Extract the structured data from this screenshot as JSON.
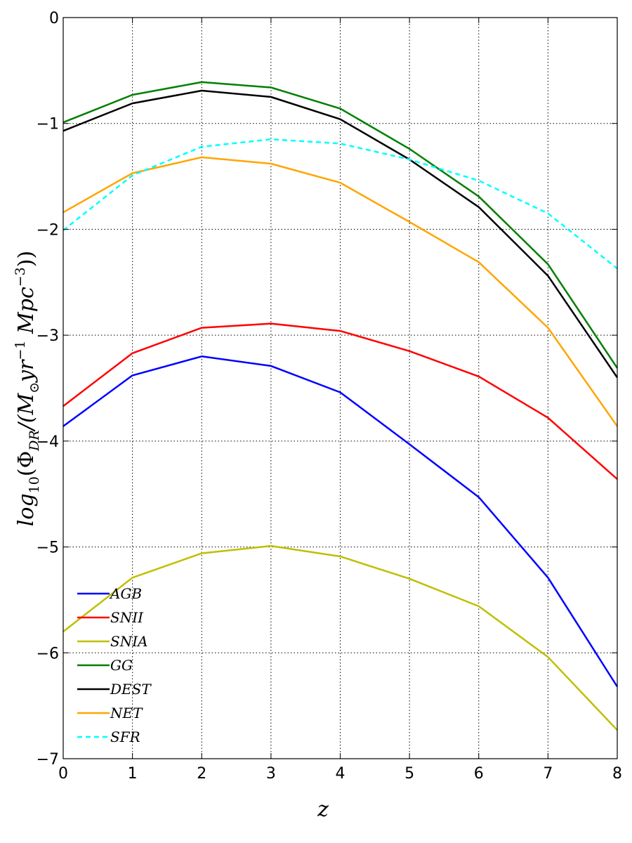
{
  "chart_data": {
    "type": "line",
    "xlabel": "z",
    "ylabel": "log10(ΦDR/(M⊙yr−1 Mpc−3))",
    "ylabel_parts": {
      "base": "log",
      "base_sub": "10",
      "open": "(Φ",
      "phi_sub": "DR",
      "mid": "/(M",
      "sun_sub": "⊙",
      "yr": "yr",
      "yr_sup": "−1",
      "mpc": " Mpc",
      "mpc_sup": "−3",
      "close": "))"
    },
    "xlim": [
      0,
      8
    ],
    "ylim": [
      -7,
      0
    ],
    "grid": true,
    "grid_style": "dotted",
    "legend_position": "lower-left",
    "x": [
      0,
      1,
      2,
      3,
      4,
      5,
      6,
      7,
      8
    ],
    "x_ticks": [
      "0",
      "1",
      "2",
      "3",
      "4",
      "5",
      "6",
      "7",
      "8"
    ],
    "y_ticks": [
      "0",
      "−1",
      "−2",
      "−3",
      "−4",
      "−5",
      "−6",
      "−7"
    ],
    "series": [
      {
        "name": "AGB",
        "color": "#0000ff",
        "dash": "solid",
        "values": [
          -3.86,
          -3.38,
          -3.2,
          -3.29,
          -3.54,
          -4.03,
          -4.53,
          -5.29,
          -6.32
        ]
      },
      {
        "name": "SNII",
        "color": "#ff0000",
        "dash": "solid",
        "values": [
          -3.67,
          -3.17,
          -2.93,
          -2.89,
          -2.96,
          -3.15,
          -3.39,
          -3.78,
          -4.36
        ]
      },
      {
        "name": "SNIA",
        "color": "#bfbf00",
        "dash": "solid",
        "values": [
          -5.8,
          -5.29,
          -5.06,
          -4.99,
          -5.09,
          -5.3,
          -5.56,
          -6.04,
          -6.73
        ]
      },
      {
        "name": "GG",
        "color": "#008000",
        "dash": "solid",
        "values": [
          -0.99,
          -0.73,
          -0.61,
          -0.66,
          -0.86,
          -1.24,
          -1.69,
          -2.33,
          -3.31
        ]
      },
      {
        "name": "DEST",
        "color": "#000000",
        "dash": "solid",
        "values": [
          -1.07,
          -0.81,
          -0.69,
          -0.75,
          -0.96,
          -1.34,
          -1.79,
          -2.44,
          -3.4
        ]
      },
      {
        "name": "NET",
        "color": "#ffa500",
        "dash": "solid",
        "values": [
          -1.84,
          -1.47,
          -1.32,
          -1.38,
          -1.56,
          -1.93,
          -2.31,
          -2.93,
          -3.86
        ]
      },
      {
        "name": "SFR",
        "color": "#00ffff",
        "dash": "dashed",
        "values": [
          -2.01,
          -1.49,
          -1.22,
          -1.15,
          -1.19,
          -1.34,
          -1.54,
          -1.85,
          -2.37
        ]
      }
    ]
  }
}
